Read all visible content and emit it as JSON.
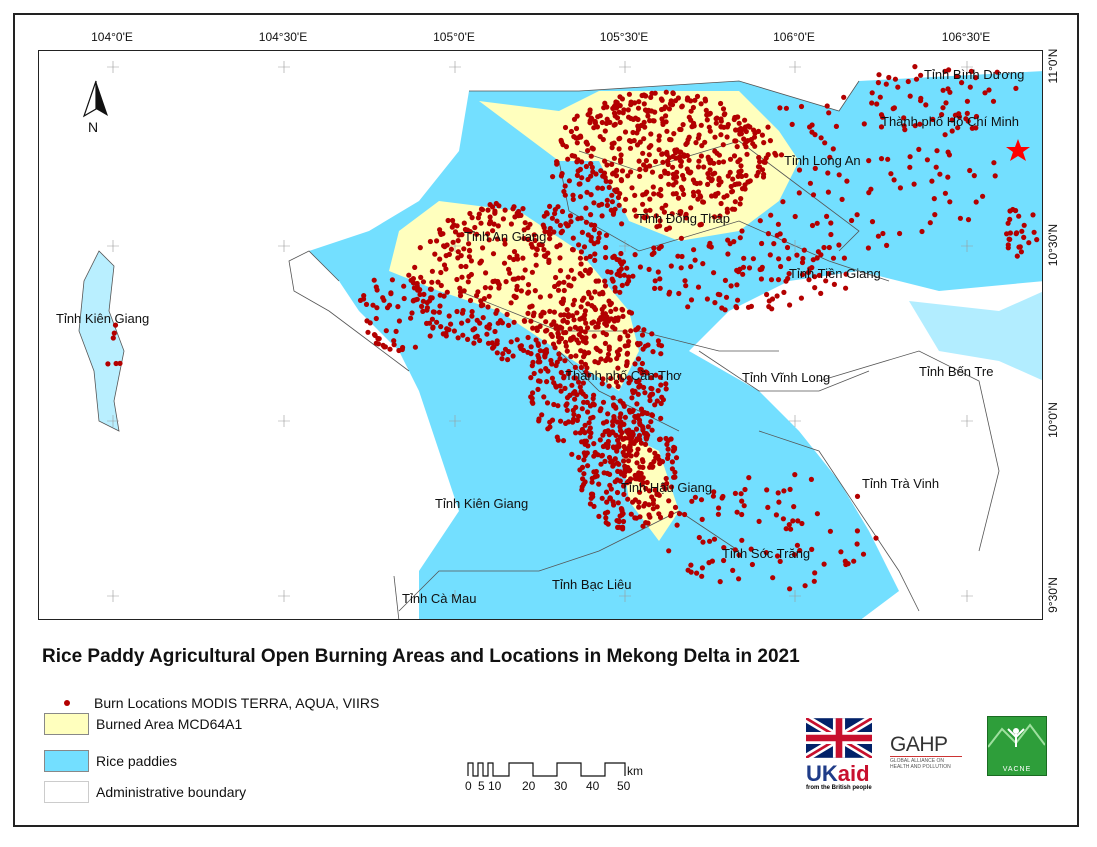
{
  "map": {
    "title": "Rice Paddy Agricultural Open Burning Areas and Locations in Mekong Delta in 2021",
    "longitude_labels": [
      "104°0'E",
      "104°30'E",
      "105°0'E",
      "105°30'E",
      "106°0'E",
      "106°30'E"
    ],
    "latitude_labels": [
      "11°0'N",
      "10°30'N",
      "10°0'N",
      "9°30'N"
    ],
    "north_arrow": "N",
    "places": [
      "Tỉnh Bình Dương",
      "Thành phố Hồ Chí Minh",
      "Tỉnh Long An",
      "Tỉnh Đồng Tháp",
      "Tỉnh An Giang",
      "Tỉnh Tiền Giang",
      "Tỉnh Kiên Giang",
      "Thành phố Cần Thơ",
      "Tỉnh Vĩnh Long",
      "Tỉnh Bến Tre",
      "Tỉnh Trà Vinh",
      "Tỉnh Hậu Giang",
      "Tỉnh Kiên Giang",
      "Tỉnh Sóc Trăng",
      "Tỉnh Bạc Liêu",
      "Tỉnh Cà Mau"
    ],
    "star_marker": "red-star-icon"
  },
  "legend": {
    "items": [
      {
        "label": "Burn Locations MODIS TERRA, AQUA, VIIRS",
        "color": "#b30000"
      },
      {
        "label": "Burned Area MCD64A1",
        "color": "#ffffbe"
      },
      {
        "label": "Rice paddies",
        "color": "#73dfff"
      },
      {
        "label": "Administrative boundary",
        "color": "#ffffff"
      }
    ]
  },
  "scale_bar": {
    "labels": [
      "0",
      "5",
      "10",
      "20",
      "30",
      "40",
      "50"
    ],
    "unit": "km"
  },
  "logos": [
    {
      "name": "UKaid",
      "tagline": "from the British people"
    },
    {
      "name": "GAHP",
      "tagline": "GLOBAL ALLIANCE ON HEALTH AND POLLUTION"
    },
    {
      "name": "VACNE"
    }
  ],
  "colors": {
    "paddy": "#73dfff",
    "burned": "#ffffbe",
    "burn_point": "#b30000",
    "star": "#ff0000"
  }
}
